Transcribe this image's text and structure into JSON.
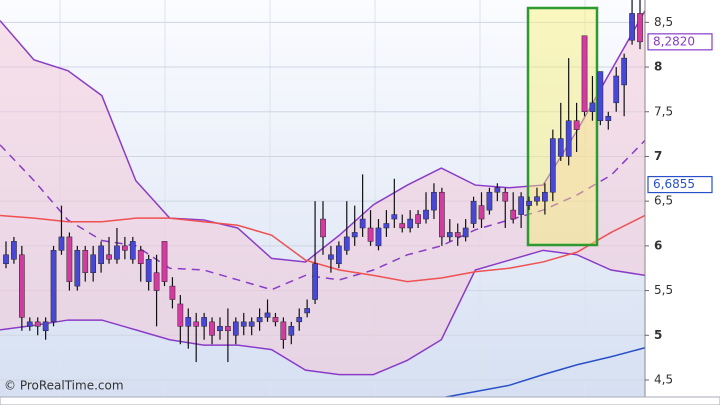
{
  "chart_data": {
    "type": "candlestick",
    "credit": "© ProRealTime.com",
    "ylim": [
      4.22,
      8.75
    ],
    "yticks": [
      {
        "value": 4.5,
        "label": "4,5"
      },
      5,
      {
        "value": 5.5,
        "label": "5,5"
      },
      6,
      {
        "value": 6.5,
        "label": "6,5"
      },
      7,
      {
        "value": 7.5,
        "label": "7,5"
      },
      8,
      {
        "value": 8.5,
        "label": "8,5"
      }
    ],
    "grid": true,
    "up_color": "#4848d8",
    "down_color": "#d23ca0",
    "categories": [
      null,
      null,
      null,
      null,
      null,
      null,
      null,
      null,
      null,
      null,
      null,
      null,
      null,
      null,
      null,
      null,
      null,
      null,
      null,
      null,
      null,
      null,
      null,
      null,
      null,
      null,
      null,
      null,
      null,
      null,
      null,
      null,
      null,
      null,
      null,
      null,
      null,
      null,
      null,
      null,
      null,
      null,
      null,
      null,
      null,
      null,
      null,
      null,
      null,
      null,
      null,
      null,
      null,
      null,
      null,
      null,
      null,
      null,
      null,
      null,
      null,
      null,
      null,
      null,
      null,
      null,
      null,
      null,
      null,
      null,
      null,
      null,
      null,
      null,
      null,
      null,
      null,
      null,
      null,
      null,
      null
    ],
    "open": [
      5.8,
      5.85,
      5.9,
      5.1,
      5.15,
      5.05,
      5.15,
      5.95,
      6.1,
      5.55,
      5.95,
      5.7,
      5.8,
      5.9,
      5.85,
      6.0,
      5.85,
      5.95,
      5.6,
      5.7,
      6.05,
      5.55,
      5.35,
      5.1,
      5.15,
      5.1,
      5.15,
      5.05,
      5.1,
      5.0,
      5.1,
      5.1,
      5.15,
      5.2,
      5.2,
      5.15,
      5.0,
      5.15,
      5.25,
      5.4,
      6.3,
      5.85,
      5.8,
      5.95,
      6.1,
      6.2,
      6.2,
      6.0,
      6.2,
      6.3,
      6.25,
      6.2,
      6.35,
      6.3,
      6.4,
      6.6,
      6.1,
      6.15,
      6.1,
      6.25,
      6.45,
      6.4,
      6.6,
      6.6,
      6.4,
      6.35,
      6.45,
      6.5,
      6.5,
      6.6,
      7.0,
      7.0,
      7.4,
      8.35,
      7.5,
      7.4,
      7.4,
      7.6,
      7.8,
      8.3,
      8.6
    ],
    "high": [
      6.05,
      6.1,
      6.0,
      5.2,
      5.2,
      5.2,
      6.0,
      6.45,
      6.15,
      6.0,
      6.0,
      6.0,
      6.05,
      6.1,
      6.2,
      6.1,
      6.1,
      6.0,
      5.9,
      5.9,
      6.05,
      5.65,
      5.45,
      5.3,
      5.25,
      5.25,
      5.2,
      5.2,
      5.3,
      5.2,
      5.25,
      5.2,
      5.3,
      5.4,
      5.25,
      5.2,
      5.15,
      5.3,
      5.4,
      6.5,
      6.5,
      6.0,
      6.05,
      6.5,
      6.45,
      6.8,
      6.4,
      6.3,
      6.4,
      6.75,
      6.35,
      6.4,
      6.4,
      6.6,
      6.7,
      6.65,
      6.3,
      6.25,
      6.3,
      6.55,
      6.6,
      6.65,
      6.7,
      6.65,
      6.6,
      6.6,
      6.55,
      6.65,
      6.7,
      7.3,
      7.6,
      8.1,
      7.6,
      8.35,
      7.9,
      7.95,
      7.5,
      8.0,
      8.15,
      8.8,
      8.75
    ],
    "low": [
      5.75,
      5.8,
      5.05,
      5.05,
      5.0,
      4.95,
      5.1,
      5.9,
      5.5,
      5.5,
      5.6,
      5.6,
      5.7,
      5.8,
      5.8,
      5.85,
      5.8,
      5.6,
      5.5,
      5.1,
      5.55,
      5.3,
      4.9,
      4.85,
      4.7,
      4.95,
      4.9,
      4.95,
      4.7,
      4.9,
      5.0,
      5.0,
      5.05,
      5.15,
      5.1,
      4.85,
      4.9,
      5.05,
      5.2,
      5.35,
      5.9,
      5.7,
      5.75,
      5.9,
      6.0,
      6.1,
      6.0,
      5.95,
      6.1,
      6.2,
      6.15,
      6.15,
      6.2,
      6.25,
      6.3,
      6.0,
      6.05,
      6.0,
      6.05,
      6.2,
      6.2,
      6.35,
      6.5,
      6.2,
      6.25,
      6.2,
      6.4,
      6.45,
      6.35,
      6.5,
      6.95,
      6.9,
      7.05,
      7.45,
      7.4,
      7.35,
      7.3,
      7.5,
      7.45,
      8.25,
      8.2
    ],
    "close": [
      5.9,
      6.05,
      5.2,
      5.15,
      5.1,
      5.15,
      5.95,
      6.1,
      5.6,
      5.95,
      5.7,
      5.9,
      6.0,
      5.85,
      6.0,
      5.95,
      6.05,
      5.8,
      5.85,
      5.5,
      5.6,
      5.4,
      5.1,
      5.2,
      5.1,
      5.2,
      5.0,
      5.1,
      5.05,
      5.15,
      5.15,
      5.15,
      5.2,
      5.25,
      5.15,
      4.95,
      5.1,
      5.2,
      5.3,
      5.8,
      6.1,
      5.9,
      6.0,
      6.1,
      6.15,
      6.3,
      6.05,
      6.2,
      6.25,
      6.35,
      6.2,
      6.3,
      6.25,
      6.4,
      6.6,
      6.1,
      6.15,
      6.1,
      6.2,
      6.5,
      6.3,
      6.6,
      6.65,
      6.5,
      6.3,
      6.55,
      6.5,
      6.55,
      6.6,
      7.2,
      7.2,
      7.4,
      7.3,
      7.5,
      7.6,
      7.95,
      7.45,
      7.9,
      8.1,
      8.6,
      8.282
    ],
    "lines": [
      {
        "color": "#8a3cc8",
        "dash": false,
        "values": [
          8.52,
          8.08,
          7.96,
          7.68,
          6.73,
          6.31,
          6.29,
          6.2,
          5.86,
          5.82,
          6.12,
          6.46,
          6.68,
          6.87,
          6.68,
          6.65,
          6.68,
          7.29,
          7.96,
          8.63
        ]
      },
      {
        "color": "#8a3cc8",
        "dash": false,
        "values": [
          5.06,
          5.11,
          5.17,
          5.17,
          5.06,
          4.95,
          4.89,
          4.89,
          4.84,
          4.61,
          4.56,
          4.56,
          4.72,
          4.95,
          5.73,
          5.84,
          5.95,
          5.9,
          5.73,
          5.67
        ]
      },
      {
        "color": "#8a3cc8",
        "dash": true,
        "values": [
          7.13,
          6.73,
          6.29,
          6.06,
          6.0,
          5.75,
          5.73,
          5.62,
          5.51,
          5.67,
          5.62,
          5.73,
          5.9,
          6.0,
          6.18,
          6.29,
          6.4,
          6.57,
          6.79,
          7.18
        ]
      },
      {
        "color": "#f05050",
        "dash": false,
        "values": [
          6.34,
          6.31,
          6.27,
          6.27,
          6.31,
          6.31,
          6.27,
          6.23,
          6.12,
          5.84,
          5.73,
          5.67,
          5.6,
          5.64,
          5.71,
          5.75,
          5.82,
          5.93,
          6.15,
          6.34
        ]
      },
      {
        "color": "#2850c8",
        "dash": false,
        "values": [
          null,
          null,
          null,
          null,
          null,
          null,
          null,
          null,
          null,
          null,
          null,
          null,
          null,
          4.3,
          4.37,
          4.44,
          4.56,
          4.67,
          4.76,
          4.86
        ]
      }
    ],
    "price_labels": [
      {
        "value": 8.282,
        "label": "8,2820",
        "color": "#8a3cc8"
      },
      {
        "value": 6.6855,
        "label": "6,6855",
        "color": "#2850c8"
      }
    ]
  }
}
